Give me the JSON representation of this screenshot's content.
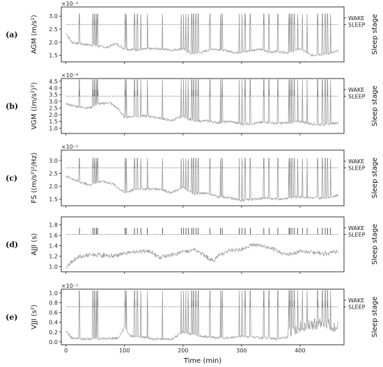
{
  "chart_data": {
    "type": "line",
    "xlabel": "Time (min)",
    "x_ticks": [
      0,
      100,
      200,
      300,
      400
    ],
    "xlim": [
      -8,
      475
    ],
    "sleep_stage_ticks": [
      "WAKE",
      "SLEEP"
    ],
    "right_label": "Sleep stage",
    "wake_events_min": [
      23,
      46,
      49,
      52,
      54,
      101,
      103,
      117,
      122,
      128,
      139,
      165,
      197,
      201,
      205,
      209,
      215,
      218,
      222,
      226,
      246,
      264,
      267,
      296,
      301,
      306,
      315,
      338,
      347,
      362,
      381,
      383,
      386,
      390,
      396,
      404,
      412,
      430,
      438,
      443,
      447,
      452
    ],
    "panels": [
      {
        "label": "(a)",
        "ylabel": "AGM (m/s²)",
        "multiplier": "×10⁻²",
        "ticks": [
          "1.5",
          "2.0",
          "2.5",
          "3.0"
        ],
        "tick_values": [
          1.5,
          2.0,
          2.5,
          3.0
        ],
        "ylim": [
          1.25,
          3.35
        ],
        "threshold": 2.62,
        "trace": [
          [
            0,
            2.35
          ],
          [
            10,
            2.0
          ],
          [
            20,
            1.95
          ],
          [
            40,
            1.9
          ],
          [
            55,
            1.85
          ],
          [
            70,
            1.8
          ],
          [
            85,
            1.95
          ],
          [
            100,
            1.75
          ],
          [
            120,
            1.7
          ],
          [
            140,
            1.75
          ],
          [
            160,
            1.75
          ],
          [
            180,
            1.7
          ],
          [
            200,
            1.75
          ],
          [
            215,
            1.55
          ],
          [
            230,
            1.6
          ],
          [
            250,
            1.75
          ],
          [
            270,
            1.7
          ],
          [
            290,
            1.6
          ],
          [
            310,
            1.65
          ],
          [
            330,
            1.75
          ],
          [
            345,
            1.62
          ],
          [
            360,
            1.65
          ],
          [
            380,
            1.6
          ],
          [
            400,
            1.75
          ],
          [
            420,
            1.5
          ],
          [
            440,
            1.55
          ],
          [
            460,
            1.62
          ],
          [
            465,
            1.68
          ]
        ]
      },
      {
        "label": "(b)",
        "ylabel": "VGM ((m/s²)²)",
        "multiplier": "×10⁻⁴",
        "ticks": [
          "1.0",
          "1.5",
          "2.0",
          "2.5",
          "3.0",
          "3.5",
          "4.0",
          "4.5"
        ],
        "tick_values": [
          1.0,
          1.5,
          2.0,
          2.5,
          3.0,
          3.5,
          4.0,
          4.5
        ],
        "ylim": [
          0.6,
          4.7
        ],
        "threshold": 3.4,
        "trace": [
          [
            0,
            2.8
          ],
          [
            20,
            2.6
          ],
          [
            40,
            2.5
          ],
          [
            55,
            2.8
          ],
          [
            75,
            2.9
          ],
          [
            90,
            2.4
          ],
          [
            100,
            1.8
          ],
          [
            120,
            1.9
          ],
          [
            140,
            1.9
          ],
          [
            160,
            1.75
          ],
          [
            180,
            1.55
          ],
          [
            200,
            1.9
          ],
          [
            220,
            1.5
          ],
          [
            240,
            1.55
          ],
          [
            260,
            1.4
          ],
          [
            280,
            1.5
          ],
          [
            300,
            1.3
          ],
          [
            320,
            1.35
          ],
          [
            340,
            1.45
          ],
          [
            360,
            1.35
          ],
          [
            380,
            1.4
          ],
          [
            400,
            1.5
          ],
          [
            420,
            1.3
          ],
          [
            440,
            1.25
          ],
          [
            465,
            1.4
          ]
        ]
      },
      {
        "label": "(c)",
        "ylabel": "FS ((m/s²)²/Hz)",
        "multiplier": "×10⁻¹",
        "ticks": [
          "1.5",
          "2.0",
          "2.5",
          "3.0"
        ],
        "tick_values": [
          1.5,
          2.0,
          2.5,
          3.0
        ],
        "ylim": [
          1.25,
          3.4
        ],
        "threshold": 2.78,
        "trace": [
          [
            0,
            2.4
          ],
          [
            20,
            2.2
          ],
          [
            40,
            2.05
          ],
          [
            60,
            2.2
          ],
          [
            80,
            2.1
          ],
          [
            100,
            1.75
          ],
          [
            120,
            1.9
          ],
          [
            140,
            1.9
          ],
          [
            160,
            1.9
          ],
          [
            180,
            1.75
          ],
          [
            200,
            1.95
          ],
          [
            220,
            1.7
          ],
          [
            240,
            1.75
          ],
          [
            260,
            1.6
          ],
          [
            280,
            1.55
          ],
          [
            300,
            1.45
          ],
          [
            320,
            1.5
          ],
          [
            340,
            1.55
          ],
          [
            360,
            1.5
          ],
          [
            380,
            1.55
          ],
          [
            400,
            1.6
          ],
          [
            420,
            1.55
          ],
          [
            440,
            1.55
          ],
          [
            465,
            1.65
          ]
        ]
      },
      {
        "label": "(d)",
        "ylabel": "AJJI (s)",
        "multiplier": "",
        "ticks": [
          "1.0",
          "1.2",
          "1.4",
          "1.6",
          "1.8"
        ],
        "tick_values": [
          1.0,
          1.2,
          1.4,
          1.6,
          1.8
        ],
        "ylim": [
          0.9,
          1.95
        ],
        "threshold": 1.6,
        "trace": [
          [
            0,
            0.98
          ],
          [
            10,
            1.1
          ],
          [
            20,
            1.18
          ],
          [
            40,
            1.22
          ],
          [
            60,
            1.22
          ],
          [
            80,
            1.2
          ],
          [
            100,
            1.25
          ],
          [
            120,
            1.28
          ],
          [
            140,
            1.3
          ],
          [
            160,
            1.18
          ],
          [
            180,
            1.22
          ],
          [
            200,
            1.28
          ],
          [
            220,
            1.32
          ],
          [
            240,
            1.2
          ],
          [
            250,
            1.1
          ],
          [
            265,
            1.25
          ],
          [
            280,
            1.3
          ],
          [
            295,
            1.32
          ],
          [
            310,
            1.38
          ],
          [
            320,
            1.42
          ],
          [
            340,
            1.38
          ],
          [
            360,
            1.3
          ],
          [
            380,
            1.22
          ],
          [
            400,
            1.3
          ],
          [
            420,
            1.28
          ],
          [
            440,
            1.25
          ],
          [
            465,
            1.28
          ]
        ]
      },
      {
        "label": "(e)",
        "ylabel": "VJJI (s²)",
        "multiplier": "×10⁻¹",
        "ticks": [
          "0.0",
          "0.2",
          "0.4",
          "0.6",
          "0.8",
          "1.0"
        ],
        "tick_values": [
          0.0,
          0.2,
          0.4,
          0.6,
          0.8,
          1.0
        ],
        "ylim": [
          -0.06,
          1.08
        ],
        "threshold": 0.71,
        "trace": [
          [
            0,
            0.22
          ],
          [
            10,
            0.08
          ],
          [
            30,
            0.06
          ],
          [
            60,
            0.06
          ],
          [
            90,
            0.08
          ],
          [
            100,
            0.3
          ],
          [
            110,
            0.12
          ],
          [
            130,
            0.1
          ],
          [
            150,
            0.06
          ],
          [
            180,
            0.05
          ],
          [
            200,
            0.2
          ],
          [
            220,
            0.14
          ],
          [
            240,
            0.1
          ],
          [
            260,
            0.08
          ],
          [
            280,
            0.08
          ],
          [
            300,
            0.12
          ],
          [
            320,
            0.1
          ],
          [
            340,
            0.08
          ],
          [
            360,
            0.06
          ],
          [
            380,
            0.1
          ],
          [
            400,
            0.2
          ],
          [
            420,
            0.25
          ],
          [
            440,
            0.3
          ],
          [
            460,
            0.22
          ],
          [
            465,
            0.3
          ]
        ]
      }
    ]
  }
}
